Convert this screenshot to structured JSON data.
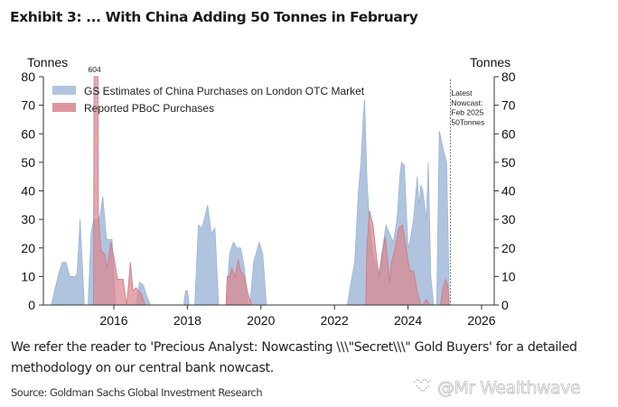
{
  "header": {
    "title": "Exhibit 3: ... With China Adding 50 Tonnes in February"
  },
  "footer": {
    "note": "We refer the reader to 'Precious Analyst: Nowcasting \\\\\\\"Secret\\\\\\\" Gold Buyers' for a detailed methodology on our central bank nowcast.",
    "source": "Source: Goldman Sachs Global Investment Research",
    "watermark": "@Mr Wealthwave",
    "watermark_icon": "diamond-wave-icon"
  },
  "chart_data": {
    "type": "area",
    "title": "Exhibit 3: ... With China Adding 50 Tonnes in February",
    "ylabel_left": "Tonnes",
    "ylabel_right": "Tonnes",
    "ylim": [
      0,
      80
    ],
    "yticks": [
      0,
      10,
      20,
      30,
      40,
      50,
      60,
      70,
      80
    ],
    "xlim": [
      2014.1,
      2026.4
    ],
    "xticks": [
      2016,
      2018,
      2020,
      2022,
      2024,
      2026
    ],
    "xtick_labels": [
      "2016",
      "2018",
      "2020",
      "2022",
      "2024",
      "2026"
    ],
    "legend_position": "top-left",
    "grid": false,
    "annotations": [
      {
        "text": "604",
        "x": 2015.5,
        "y": 80,
        "note": "off-scale PBoC bar truncated at axis max"
      },
      {
        "text": "Latest\nNowcast:\nFeb 2025\n50Tonnes",
        "x": 2025.15,
        "type": "vertical-dashed-line"
      }
    ],
    "series": [
      {
        "name": "GS Estimates of China Purchases on London OTC Market",
        "color": "#a9bedc",
        "stroke": "#9fb4d3",
        "points": [
          [
            2014.3,
            0
          ],
          [
            2014.5,
            11
          ],
          [
            2014.6,
            15
          ],
          [
            2014.7,
            15
          ],
          [
            2014.8,
            10
          ],
          [
            2014.95,
            10
          ],
          [
            2015.0,
            11
          ],
          [
            2015.08,
            30
          ],
          [
            2015.2,
            0
          ],
          [
            2015.3,
            0
          ],
          [
            2015.38,
            25
          ],
          [
            2015.45,
            30
          ],
          [
            2015.55,
            30
          ],
          [
            2015.62,
            31
          ],
          [
            2015.7,
            38
          ],
          [
            2015.8,
            23
          ],
          [
            2015.95,
            23
          ],
          [
            2016.05,
            0
          ],
          [
            2016.55,
            0
          ],
          [
            2016.6,
            0
          ],
          [
            2016.7,
            8
          ],
          [
            2016.8,
            7
          ],
          [
            2016.9,
            3
          ],
          [
            2017.0,
            0
          ],
          [
            2017.9,
            0
          ],
          [
            2017.95,
            5
          ],
          [
            2018.0,
            5
          ],
          [
            2018.05,
            0
          ],
          [
            2018.2,
            0
          ],
          [
            2018.3,
            28
          ],
          [
            2018.4,
            27
          ],
          [
            2018.55,
            35
          ],
          [
            2018.65,
            25
          ],
          [
            2018.75,
            27
          ],
          [
            2018.85,
            0
          ],
          [
            2019.05,
            0
          ],
          [
            2019.15,
            18
          ],
          [
            2019.25,
            22
          ],
          [
            2019.35,
            20
          ],
          [
            2019.45,
            20
          ],
          [
            2019.55,
            13
          ],
          [
            2019.65,
            0
          ],
          [
            2019.7,
            0
          ],
          [
            2019.8,
            15
          ],
          [
            2019.95,
            22
          ],
          [
            2020.05,
            18
          ],
          [
            2020.15,
            0
          ],
          [
            2022.35,
            0
          ],
          [
            2022.45,
            8
          ],
          [
            2022.55,
            15
          ],
          [
            2022.65,
            40
          ],
          [
            2022.72,
            50
          ],
          [
            2022.78,
            65
          ],
          [
            2022.82,
            72
          ],
          [
            2022.88,
            45
          ],
          [
            2022.95,
            28
          ],
          [
            2023.05,
            18
          ],
          [
            2023.2,
            10
          ],
          [
            2023.4,
            28
          ],
          [
            2023.5,
            25
          ],
          [
            2023.6,
            22
          ],
          [
            2023.7,
            30
          ],
          [
            2023.78,
            45
          ],
          [
            2023.82,
            50
          ],
          [
            2023.9,
            49
          ],
          [
            2024.0,
            20
          ],
          [
            2024.05,
            22
          ],
          [
            2024.15,
            30
          ],
          [
            2024.25,
            45
          ],
          [
            2024.3,
            35
          ],
          [
            2024.35,
            42
          ],
          [
            2024.4,
            40
          ],
          [
            2024.5,
            30
          ],
          [
            2024.55,
            50
          ],
          [
            2024.62,
            10
          ],
          [
            2024.7,
            0
          ],
          [
            2024.78,
            0
          ],
          [
            2024.85,
            61
          ],
          [
            2024.95,
            55
          ],
          [
            2025.05,
            50
          ],
          [
            2025.1,
            18
          ],
          [
            2025.12,
            0
          ]
        ]
      },
      {
        "name": "Reported PBoC Purchases",
        "color": "#d98a92",
        "stroke": "#c97a84",
        "points": [
          [
            2015.45,
            0
          ],
          [
            2015.46,
            80
          ],
          [
            2015.57,
            80
          ],
          [
            2015.58,
            32
          ],
          [
            2015.65,
            19
          ],
          [
            2015.75,
            18
          ],
          [
            2015.82,
            13
          ],
          [
            2015.92,
            22
          ],
          [
            2016.0,
            17
          ],
          [
            2016.1,
            9
          ],
          [
            2016.25,
            9
          ],
          [
            2016.35,
            0
          ],
          [
            2016.45,
            15
          ],
          [
            2016.52,
            5
          ],
          [
            2016.6,
            6
          ],
          [
            2016.75,
            4
          ],
          [
            2016.85,
            0
          ],
          [
            2019.05,
            0
          ],
          [
            2019.08,
            10
          ],
          [
            2019.15,
            10
          ],
          [
            2019.2,
            13
          ],
          [
            2019.3,
            10
          ],
          [
            2019.38,
            16
          ],
          [
            2019.45,
            12
          ],
          [
            2019.55,
            10
          ],
          [
            2019.65,
            4
          ],
          [
            2019.75,
            0
          ],
          [
            2022.85,
            0
          ],
          [
            2022.88,
            20
          ],
          [
            2022.95,
            33
          ],
          [
            2023.05,
            28
          ],
          [
            2023.15,
            16
          ],
          [
            2023.22,
            10
          ],
          [
            2023.3,
            18
          ],
          [
            2023.38,
            24
          ],
          [
            2023.45,
            15
          ],
          [
            2023.5,
            8
          ],
          [
            2023.55,
            15
          ],
          [
            2023.65,
            20
          ],
          [
            2023.75,
            27
          ],
          [
            2023.85,
            28
          ],
          [
            2023.95,
            20
          ],
          [
            2024.05,
            12
          ],
          [
            2024.15,
            12
          ],
          [
            2024.25,
            5
          ],
          [
            2024.35,
            0
          ],
          [
            2024.4,
            0
          ],
          [
            2024.5,
            2
          ],
          [
            2024.6,
            0
          ],
          [
            2024.88,
            0
          ],
          [
            2024.95,
            6
          ],
          [
            2025.02,
            9
          ],
          [
            2025.08,
            7
          ],
          [
            2025.12,
            0
          ]
        ]
      }
    ],
    "pboc_peak_value": 604
  }
}
